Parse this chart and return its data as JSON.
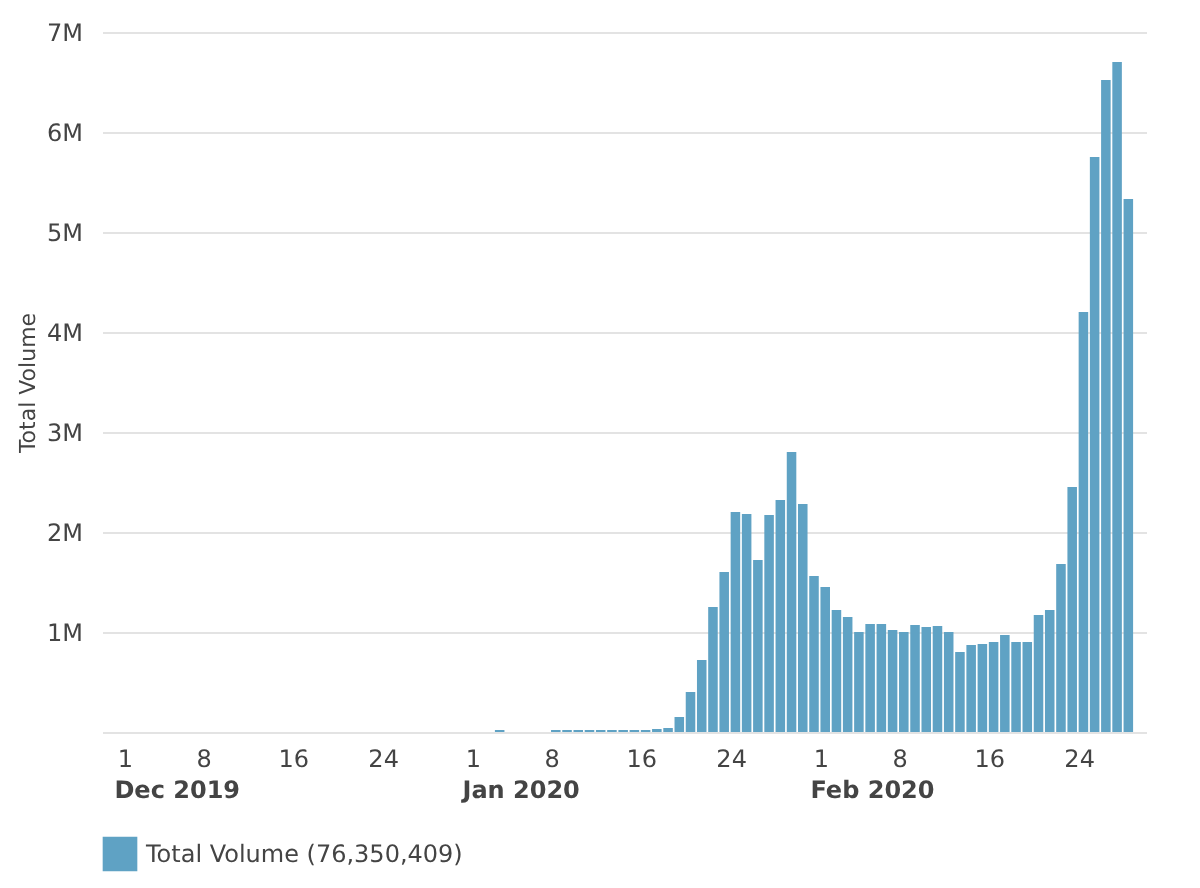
{
  "chart_data": {
    "type": "bar",
    "ylabel": "Total Volume",
    "x": [
      "2020-01-03",
      "2020-01-08",
      "2020-01-09",
      "2020-01-10",
      "2020-01-11",
      "2020-01-12",
      "2020-01-13",
      "2020-01-14",
      "2020-01-15",
      "2020-01-16",
      "2020-01-17",
      "2020-01-18",
      "2020-01-19",
      "2020-01-20",
      "2020-01-21",
      "2020-01-22",
      "2020-01-23",
      "2020-01-24",
      "2020-01-25",
      "2020-01-26",
      "2020-01-27",
      "2020-01-28",
      "2020-01-29",
      "2020-01-30",
      "2020-01-31",
      "2020-02-01",
      "2020-02-02",
      "2020-02-03",
      "2020-02-04",
      "2020-02-05",
      "2020-02-06",
      "2020-02-07",
      "2020-02-08",
      "2020-02-09",
      "2020-02-10",
      "2020-02-11",
      "2020-02-12",
      "2020-02-13",
      "2020-02-14",
      "2020-02-15",
      "2020-02-16",
      "2020-02-17",
      "2020-02-18",
      "2020-02-19",
      "2020-02-20",
      "2020-02-21",
      "2020-02-22",
      "2020-02-23",
      "2020-02-24",
      "2020-02-25",
      "2020-02-26",
      "2020-02-27",
      "2020-02-28"
    ],
    "series": [
      {
        "name": "Total Volume (76,350,409)",
        "color": "#5fa2c4",
        "values": [
          20000,
          20000,
          20000,
          20000,
          20000,
          20000,
          20000,
          20000,
          20000,
          20000,
          30000,
          40000,
          150000,
          400000,
          720000,
          1250000,
          1600000,
          2200000,
          2180000,
          1720000,
          2170000,
          2320000,
          2800000,
          2280000,
          1560000,
          1450000,
          1220000,
          1150000,
          1000000,
          1080000,
          1080000,
          1020000,
          1000000,
          1070000,
          1050000,
          1060000,
          1000000,
          800000,
          870000,
          880000,
          900000,
          970000,
          900000,
          900000,
          1170000,
          1220000,
          1680000,
          2450000,
          4200000,
          5750000,
          6520000,
          6700000,
          5330000
        ]
      }
    ],
    "xlim": [
      "2019-11-29",
      "2020-03-01"
    ],
    "xticks": [
      {
        "value": "2019-12-01",
        "label": "1"
      },
      {
        "value": "2019-12-08",
        "label": "8"
      },
      {
        "value": "2019-12-16",
        "label": "16"
      },
      {
        "value": "2019-12-24",
        "label": "24"
      },
      {
        "value": "2020-01-01",
        "label": "1"
      },
      {
        "value": "2020-01-08",
        "label": "8"
      },
      {
        "value": "2020-01-16",
        "label": "16"
      },
      {
        "value": "2020-01-24",
        "label": "24"
      },
      {
        "value": "2020-02-01",
        "label": "1"
      },
      {
        "value": "2020-02-08",
        "label": "8"
      },
      {
        "value": "2020-02-16",
        "label": "16"
      },
      {
        "value": "2020-02-24",
        "label": "24"
      }
    ],
    "ylim": [
      0,
      7000000
    ],
    "yticks": [
      {
        "value": 0,
        "label": null
      },
      {
        "value": 1000000,
        "label": "1M"
      },
      {
        "value": 2000000,
        "label": "2M"
      },
      {
        "value": 3000000,
        "label": "3M"
      },
      {
        "value": 4000000,
        "label": "4M"
      },
      {
        "value": 5000000,
        "label": "5M"
      },
      {
        "value": 6000000,
        "label": "6M"
      },
      {
        "value": 7000000,
        "label": "7M"
      }
    ],
    "annotations": [
      "Dec 2019",
      "Jan 2020",
      "Feb 2020"
    ],
    "grid": "y",
    "legend": "bottom left"
  }
}
